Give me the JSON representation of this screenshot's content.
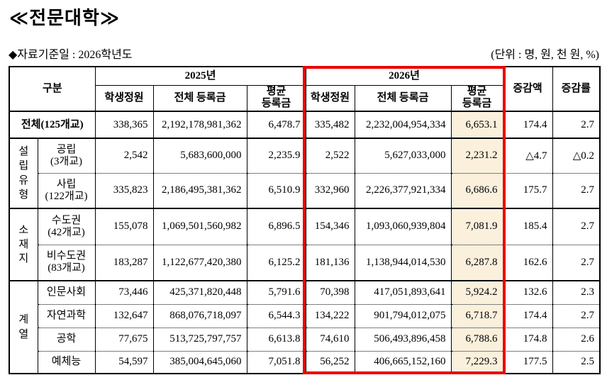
{
  "page": {
    "title": "≪전문대학≫",
    "subtitle": "◆자료기준일 : 2026학년도",
    "unit_note": "(단위 : 명, 원, 천 원, %)"
  },
  "colors": {
    "accent_red": "#ec0000",
    "highlight_bg": "#faf0dc"
  },
  "table": {
    "header": {
      "gubun": "구분",
      "year2025": "2025년",
      "year2026": "2026년",
      "students": "학생정원",
      "total_tuition": "전체 등록금",
      "avg_tuition": "평균\n등록금",
      "change_amount": "증감액",
      "change_rate": "증감률"
    },
    "groups": {
      "founding": "설\n립\n유\n형",
      "location": "소\n재\n지",
      "field": "계\n열"
    },
    "rows": {
      "total": {
        "label": "전체(125개교)",
        "s25": "338,365",
        "t25": "2,192,178,981,362",
        "a25": "6,478.7",
        "s26": "335,482",
        "t26": "2,232,004,954,334",
        "a26": "6,653.1",
        "diff": "174.4",
        "rate": "2.7"
      },
      "public": {
        "label": "공립\n(3개교)",
        "s25": "2,542",
        "t25": "5,683,600,000",
        "a25": "2,235.9",
        "s26": "2,522",
        "t26": "5,627,033,000",
        "a26": "2,231.2",
        "diff": "△4.7",
        "rate": "△0.2"
      },
      "private": {
        "label": "사립\n(122개교)",
        "s25": "335,823",
        "t25": "2,186,495,381,362",
        "a25": "6,510.9",
        "s26": "332,960",
        "t26": "2,226,377,921,334",
        "a26": "6,686.6",
        "diff": "175.7",
        "rate": "2.7"
      },
      "capital": {
        "label": "수도권\n(42개교)",
        "s25": "155,078",
        "t25": "1,069,501,560,982",
        "a25": "6,896.5",
        "s26": "154,346",
        "t26": "1,093,060,939,804",
        "a26": "7,081.9",
        "diff": "185.4",
        "rate": "2.7"
      },
      "noncapital": {
        "label": "비수도권\n(83개교)",
        "s25": "183,287",
        "t25": "1,122,677,420,380",
        "a25": "6,125.2",
        "s26": "181,136",
        "t26": "1,138,944,014,530",
        "a26": "6,287.8",
        "diff": "162.6",
        "rate": "2.7"
      },
      "humanities": {
        "label": "인문사회",
        "s25": "73,446",
        "t25": "425,371,820,448",
        "a25": "5,791.6",
        "s26": "70,398",
        "t26": "417,051,893,641",
        "a26": "5,924.2",
        "diff": "132.6",
        "rate": "2.3"
      },
      "natural": {
        "label": "자연과학",
        "s25": "132,647",
        "t25": "868,076,718,097",
        "a25": "6,544.3",
        "s26": "134,222",
        "t26": "901,794,012,075",
        "a26": "6,718.7",
        "diff": "174.4",
        "rate": "2.7"
      },
      "engineering": {
        "label": "공학",
        "s25": "77,675",
        "t25": "513,725,797,757",
        "a25": "6,613.8",
        "s26": "74,610",
        "t26": "506,493,896,458",
        "a26": "6,788.6",
        "diff": "174.8",
        "rate": "2.6"
      },
      "arts": {
        "label": "예체능",
        "s25": "54,597",
        "t25": "385,004,645,060",
        "a25": "7,051.8",
        "s26": "56,252",
        "t26": "406,665,152,160",
        "a26": "7,229.3",
        "diff": "177.5",
        "rate": "2.5"
      }
    }
  }
}
